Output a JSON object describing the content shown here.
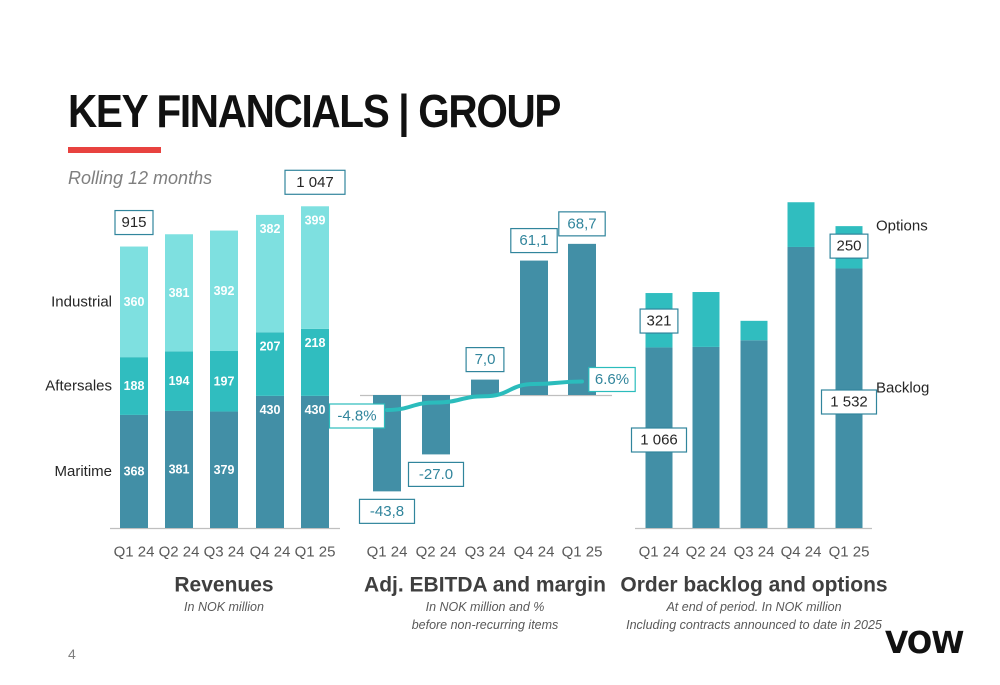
{
  "slide": {
    "title": "KEY FINANCIALS | GROUP",
    "subtitle": "Rolling 12 months",
    "page_number": "4",
    "logo": "VOW"
  },
  "colors": {
    "dark": "#428fa6",
    "mid": "#30bdbf",
    "light": "#7ee0e0",
    "line": "#2bbcbc",
    "axis": "#bfbfbf",
    "text": "#404040"
  },
  "chart_data": [
    {
      "type": "bar",
      "stacked": true,
      "title": "Revenues",
      "subtitle_lines": [
        "In NOK million"
      ],
      "categories": [
        "Q1 24",
        "Q2 24",
        "Q3 24",
        "Q4 24",
        "Q1 25"
      ],
      "series": [
        {
          "name": "Maritime",
          "values": [
            368,
            381,
            379,
            430,
            430
          ]
        },
        {
          "name": "Aftersales",
          "values": [
            188,
            194,
            197,
            207,
            218
          ]
        },
        {
          "name": "Industrial",
          "values": [
            360,
            381,
            392,
            382,
            399
          ]
        }
      ],
      "callouts": [
        {
          "category": "Q1 24",
          "label": "915"
        },
        {
          "category": "Q1 25",
          "label": "1 047"
        }
      ],
      "ylim": [
        0,
        1100
      ]
    },
    {
      "type": "bar",
      "title": "Adj. EBITDA and margin",
      "subtitle_lines": [
        "In NOK million and %",
        "before non-recurring items"
      ],
      "categories": [
        "Q1 24",
        "Q2 24",
        "Q3 24",
        "Q4 24",
        "Q1 25"
      ],
      "series": [
        {
          "values": [
            -43.8,
            -27.0,
            7.0,
            61.1,
            68.7
          ]
        }
      ],
      "value_labels": [
        "-43,8",
        "-27.0",
        "7,0",
        "61,1",
        "68,7"
      ],
      "margin_line": {
        "values": [
          -4.8,
          -1.8,
          0.7,
          5.6,
          6.6
        ],
        "labels": [
          {
            "category": "Q1 24",
            "label": "-4.8%"
          },
          {
            "category": "Q1 25",
            "label": "6.6%"
          }
        ]
      },
      "ylim": [
        -62,
        88
      ]
    },
    {
      "type": "bar",
      "stacked": true,
      "title": "Order backlog and options",
      "subtitle_lines": [
        "At end of period. In NOK million",
        "Including contracts announced to date in 2025"
      ],
      "categories": [
        "Q1 24",
        "Q2 24",
        "Q3 24",
        "Q4 24",
        "Q1 25"
      ],
      "series": [
        {
          "name": "Backlog",
          "values": [
            1066,
            1069,
            1108,
            1659,
            1532
          ]
        },
        {
          "name": "Options",
          "values": [
            321,
            324,
            115,
            264,
            250
          ]
        }
      ],
      "value_labels": [
        {
          "category": "Q1 24",
          "series": "Backlog",
          "label": "1 066"
        },
        {
          "category": "Q1 24",
          "series": "Options",
          "label": "321"
        },
        {
          "category": "Q1 25",
          "series": "Backlog",
          "label": "1 532"
        },
        {
          "category": "Q1 25",
          "series": "Options",
          "label": "250"
        }
      ],
      "ylim": [
        0,
        2000
      ]
    }
  ]
}
